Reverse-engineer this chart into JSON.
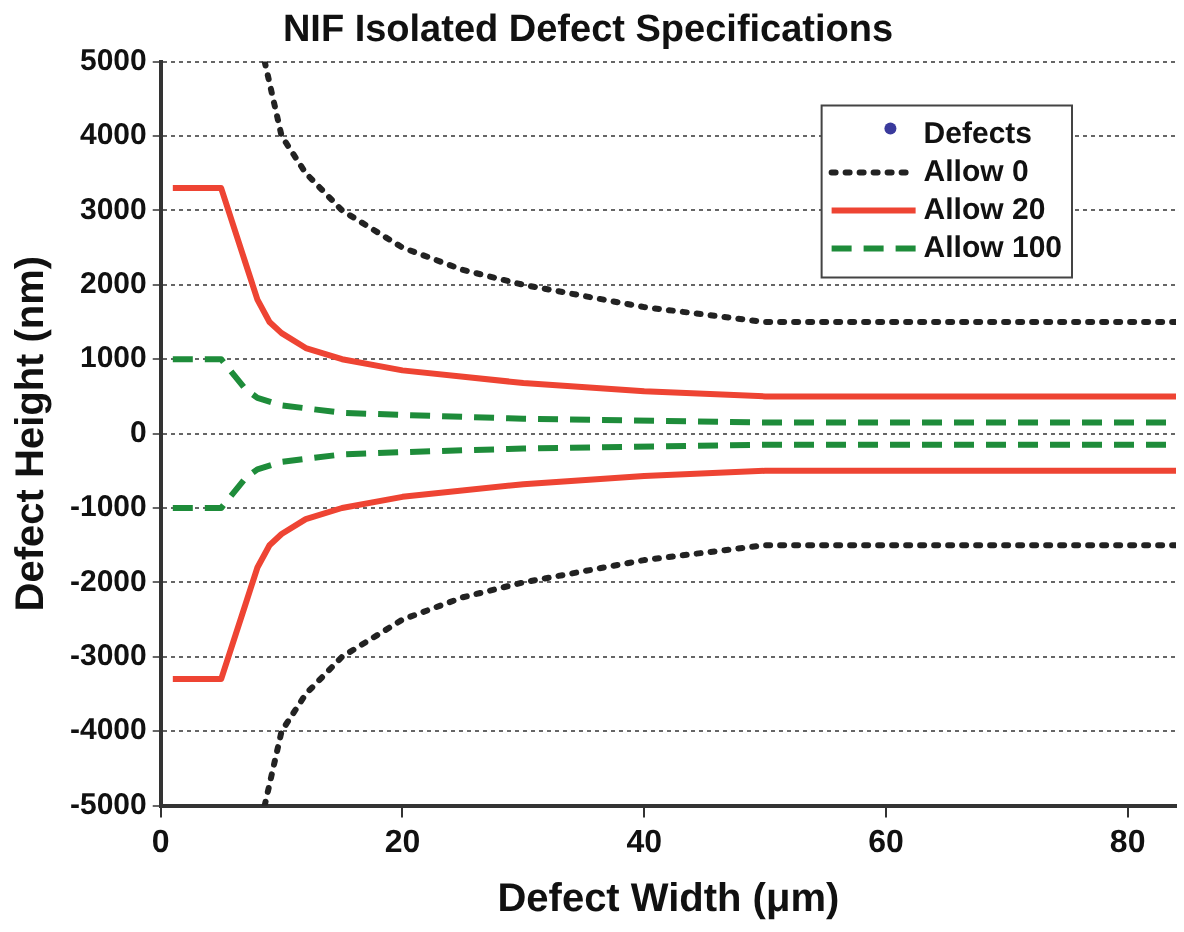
{
  "chart_data": {
    "type": "line",
    "title": "NIF Isolated Defect Specifications",
    "xlabel": "Defect Width (μm)",
    "ylabel": "Defect Height (nm)",
    "xlim": [
      0,
      84
    ],
    "xticks": [
      0,
      20,
      40,
      60,
      80
    ],
    "ylim": [
      -5000,
      5000
    ],
    "yticks": [
      -5000,
      -4000,
      -3000,
      -2000,
      -1000,
      0,
      1000,
      2000,
      3000,
      4000,
      5000
    ],
    "grid": "y",
    "legend": "top right",
    "series": [
      {
        "name": "Defects",
        "type": "scatter",
        "marker": "circle",
        "color": "#3a3a9c"
      },
      {
        "name": "Allow 0",
        "color": "#222222",
        "line_style": "dotted",
        "marker": "none",
        "x": [
          8.6,
          10,
          12,
          15,
          20,
          25,
          30,
          40,
          50,
          84
        ],
        "values": [
          5000,
          4000,
          3500,
          3000,
          2500,
          2200,
          2000,
          1700,
          1500,
          1500
        ]
      },
      {
        "color": "#222222",
        "line_style": "dotted",
        "marker": "none",
        "x": [
          8.6,
          10,
          12,
          15,
          20,
          25,
          30,
          40,
          50,
          84
        ],
        "values": [
          -5000,
          -4000,
          -3500,
          -3000,
          -2500,
          -2200,
          -2000,
          -1700,
          -1500,
          -1500
        ]
      },
      {
        "name": "Allow 20",
        "color": "#ee4433",
        "line_style": "solid",
        "marker": "none",
        "x": [
          1,
          5,
          7,
          8,
          9,
          10,
          12,
          15,
          20,
          30,
          40,
          50,
          84
        ],
        "values": [
          3300,
          3300,
          2300,
          1800,
          1500,
          1350,
          1150,
          1000,
          850,
          680,
          570,
          500,
          500
        ]
      },
      {
        "color": "#ee4433",
        "line_style": "solid",
        "marker": "none",
        "x": [
          1,
          5,
          7,
          8,
          9,
          10,
          12,
          15,
          20,
          30,
          40,
          50,
          84
        ],
        "values": [
          -3300,
          -3300,
          -2300,
          -1800,
          -1500,
          -1350,
          -1150,
          -1000,
          -850,
          -680,
          -570,
          -500,
          -500
        ]
      },
      {
        "name": "Allow 100",
        "color": "#1e8c3a",
        "line_style": "dashed",
        "marker": "none",
        "x": [
          1,
          5,
          7,
          8,
          10,
          15,
          20,
          30,
          50,
          84
        ],
        "values": [
          1000,
          1000,
          600,
          480,
          380,
          280,
          250,
          200,
          150,
          150
        ]
      },
      {
        "color": "#1e8c3a",
        "line_style": "dashed",
        "marker": "none",
        "x": [
          1,
          5,
          7,
          8,
          10,
          15,
          20,
          30,
          50,
          84
        ],
        "values": [
          -1000,
          -1000,
          -600,
          -480,
          -380,
          -280,
          -250,
          -200,
          -150,
          -150
        ]
      }
    ]
  }
}
